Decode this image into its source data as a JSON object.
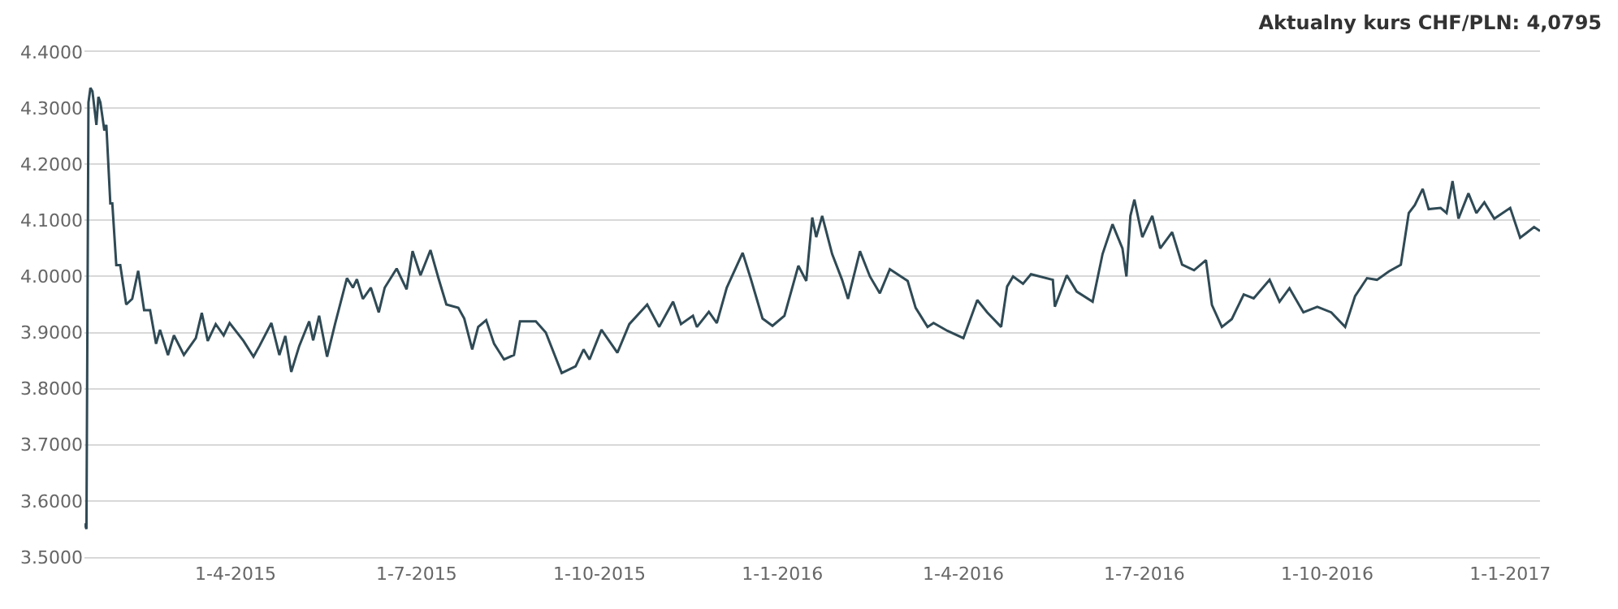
{
  "chart_data": {
    "type": "line",
    "title": "Aktualny kurs CHF/PLN: 4,0795",
    "color": "#2f4a55",
    "marker": "none",
    "line_style": "solid",
    "grid": "y",
    "x": [
      "2015-01-15",
      "2015-01-16",
      "2015-01-17",
      "2015-01-18",
      "2015-01-19",
      "2015-01-21",
      "2015-01-22",
      "2015-01-23",
      "2015-01-25",
      "2015-01-26",
      "2015-01-28",
      "2015-01-29",
      "2015-01-31",
      "2015-02-02",
      "2015-02-05",
      "2015-02-08",
      "2015-02-11",
      "2015-02-14",
      "2015-02-17",
      "2015-02-20",
      "2015-02-22",
      "2015-02-26",
      "2015-03-01",
      "2015-03-06",
      "2015-03-12",
      "2015-03-15",
      "2015-03-18",
      "2015-03-22",
      "2015-03-26",
      "2015-03-29",
      "2015-04-05",
      "2015-04-10",
      "2015-04-13",
      "2015-04-19",
      "2015-04-23",
      "2015-04-26",
      "2015-04-29",
      "2015-05-03",
      "2015-05-08",
      "2015-05-10",
      "2015-05-13",
      "2015-05-17",
      "2015-05-21",
      "2015-05-27",
      "2015-05-30",
      "2015-06-01",
      "2015-06-04",
      "2015-06-08",
      "2015-06-12",
      "2015-06-15",
      "2015-06-21",
      "2015-06-26",
      "2015-06-29",
      "2015-07-03",
      "2015-07-08",
      "2015-07-12",
      "2015-07-16",
      "2015-07-22",
      "2015-07-25",
      "2015-07-29",
      "2015-08-01",
      "2015-08-05",
      "2015-08-09",
      "2015-08-14",
      "2015-08-19",
      "2015-08-22",
      "2015-08-30",
      "2015-09-04",
      "2015-09-12",
      "2015-09-19",
      "2015-09-23",
      "2015-09-26",
      "2015-10-02",
      "2015-10-10",
      "2015-10-16",
      "2015-10-25",
      "2015-10-31",
      "2015-11-07",
      "2015-11-11",
      "2015-11-17",
      "2015-11-19",
      "2015-11-25",
      "2015-11-29",
      "2015-12-04",
      "2015-12-12",
      "2015-12-16",
      "2015-12-22",
      "2015-12-27",
      "2016-01-02",
      "2016-01-09",
      "2016-01-13",
      "2016-01-16",
      "2016-01-18",
      "2016-01-21",
      "2016-01-26",
      "2016-01-31",
      "2016-02-03",
      "2016-02-09",
      "2016-02-14",
      "2016-02-19",
      "2016-02-24",
      "2016-03-04",
      "2016-03-08",
      "2016-03-14",
      "2016-03-17",
      "2016-03-24",
      "2016-04-01",
      "2016-04-08",
      "2016-04-13",
      "2016-04-20",
      "2016-04-23",
      "2016-04-26",
      "2016-05-01",
      "2016-05-05",
      "2016-05-16",
      "2016-05-17",
      "2016-05-23",
      "2016-05-28",
      "2016-06-05",
      "2016-06-10",
      "2016-06-15",
      "2016-06-20",
      "2016-06-22",
      "2016-06-24",
      "2016-06-26",
      "2016-06-30",
      "2016-07-05",
      "2016-07-09",
      "2016-07-15",
      "2016-07-20",
      "2016-07-26",
      "2016-08-01",
      "2016-08-04",
      "2016-08-09",
      "2016-08-14",
      "2016-08-20",
      "2016-08-25",
      "2016-09-02",
      "2016-09-07",
      "2016-09-12",
      "2016-09-19",
      "2016-09-26",
      "2016-10-03",
      "2016-10-10",
      "2016-10-15",
      "2016-10-21",
      "2016-10-26",
      "2016-11-01",
      "2016-11-07",
      "2016-11-11",
      "2016-11-14",
      "2016-11-18",
      "2016-11-21",
      "2016-11-27",
      "2016-11-30",
      "2016-12-03",
      "2016-12-06",
      "2016-12-11",
      "2016-12-15",
      "2016-12-19",
      "2016-12-24",
      "2017-01-01",
      "2017-01-06",
      "2017-01-09",
      "2017-01-13",
      "2017-01-16"
    ],
    "values": [
      3.56,
      3.55,
      4.31,
      4.336,
      4.33,
      4.27,
      4.32,
      4.31,
      4.26,
      4.27,
      4.13,
      4.13,
      4.02,
      4.02,
      3.95,
      3.96,
      4.01,
      3.94,
      3.94,
      3.88,
      3.905,
      3.86,
      3.895,
      3.86,
      3.89,
      3.935,
      3.885,
      3.915,
      3.895,
      3.917,
      3.885,
      3.857,
      3.876,
      3.917,
      3.86,
      3.894,
      3.83,
      3.876,
      3.92,
      3.886,
      3.93,
      3.857,
      3.915,
      3.997,
      3.98,
      3.995,
      3.96,
      3.98,
      3.936,
      3.98,
      4.014,
      3.977,
      4.045,
      4.002,
      4.047,
      3.997,
      3.95,
      3.944,
      3.925,
      3.87,
      3.91,
      3.922,
      3.88,
      3.852,
      3.86,
      3.92,
      3.92,
      3.9,
      3.828,
      3.84,
      3.87,
      3.852,
      3.905,
      3.864,
      3.915,
      3.95,
      3.91,
      3.955,
      3.915,
      3.93,
      3.91,
      3.937,
      3.917,
      3.98,
      4.042,
      3.997,
      3.925,
      3.912,
      3.93,
      4.019,
      3.992,
      4.105,
      4.07,
      4.108,
      4.04,
      3.994,
      3.96,
      4.045,
      4.0,
      3.97,
      4.013,
      3.992,
      3.944,
      3.91,
      3.917,
      3.903,
      3.89,
      3.958,
      3.936,
      3.91,
      3.982,
      4.0,
      3.987,
      4.004,
      3.994,
      3.946,
      4.002,
      3.973,
      3.955,
      4.04,
      4.093,
      4.05,
      4.0,
      4.108,
      4.137,
      4.07,
      4.108,
      4.05,
      4.079,
      4.021,
      4.011,
      4.029,
      3.949,
      3.91,
      3.924,
      3.968,
      3.961,
      3.994,
      3.955,
      3.979,
      3.936,
      3.946,
      3.936,
      3.91,
      3.965,
      3.997,
      3.994,
      4.009,
      4.021,
      4.113,
      4.127,
      4.156,
      4.12,
      4.122,
      4.113,
      4.17,
      4.103,
      4.148,
      4.113,
      4.132,
      4.103,
      4.122,
      4.069,
      4.077,
      4.088,
      4.081
    ],
    "xlim": [
      "2015-01-15",
      "2017-01-16"
    ],
    "xticks": [
      {
        "value": "2015-04-01",
        "label": "1-4-2015"
      },
      {
        "value": "2015-07-01",
        "label": "1-7-2015"
      },
      {
        "value": "2015-10-01",
        "label": "1-10-2015"
      },
      {
        "value": "2016-01-01",
        "label": "1-1-2016"
      },
      {
        "value": "2016-04-01",
        "label": "1-4-2016"
      },
      {
        "value": "2016-07-01",
        "label": "1-7-2016"
      },
      {
        "value": "2016-10-01",
        "label": "1-10-2016"
      },
      {
        "value": "2017-01-01",
        "label": "1-1-2017"
      }
    ],
    "ylim": [
      3.5,
      4.4
    ],
    "yticks": [
      {
        "value": 3.5,
        "label": "3.5000"
      },
      {
        "value": 3.6,
        "label": "3.6000"
      },
      {
        "value": 3.7,
        "label": "3.7000"
      },
      {
        "value": 3.8,
        "label": "3.8000"
      },
      {
        "value": 3.9,
        "label": "3.9000"
      },
      {
        "value": 4.0,
        "label": "4.0000"
      },
      {
        "value": 4.1,
        "label": "4.1000"
      },
      {
        "value": 4.2,
        "label": "4.2000"
      },
      {
        "value": 4.3,
        "label": "4.3000"
      },
      {
        "value": 4.4,
        "label": "4.4000"
      }
    ]
  }
}
